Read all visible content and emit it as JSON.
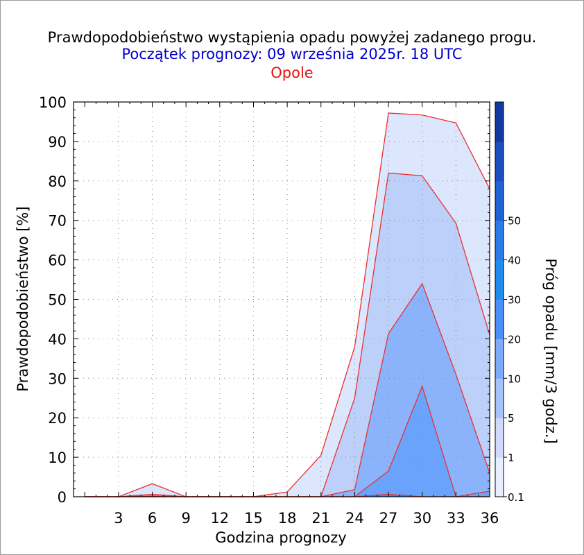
{
  "titles": {
    "line1": "Prawdopodobieństwo wystąpienia opadu powyżej zadanego progu.",
    "line2": "Początek prognozy: 09 września 2025r. 18 UTC",
    "line3": "Opole"
  },
  "colors": {
    "title1": "#000000",
    "title2": "#0000cc",
    "title3": "#e81010",
    "outline": "#e83030"
  },
  "chart_data": {
    "type": "area",
    "title": "Prawdopodobieństwo wystąpienia opadu powyżej zadanego progu.",
    "xlabel": "Godzina prognozy",
    "ylabel": "Prawdopodobieństwo [%]",
    "xlim": [
      -1,
      36
    ],
    "ylim": [
      0,
      100
    ],
    "x": [
      0,
      3,
      6,
      9,
      12,
      15,
      18,
      21,
      24,
      27,
      30,
      33,
      36
    ],
    "xticks": [
      "3",
      "6",
      "9",
      "12",
      "15",
      "18",
      "21",
      "24",
      "27",
      "30",
      "33",
      "36"
    ],
    "yticks": [
      "0",
      "10",
      "20",
      "30",
      "40",
      "50",
      "60",
      "70",
      "80",
      "90",
      "100"
    ],
    "grid": true,
    "series": [
      {
        "name": "0.1",
        "color": "#dce6fc",
        "values": [
          0,
          0,
          3.3,
          0,
          0,
          0,
          1.2,
          10.5,
          38,
          97.2,
          96.7,
          94.7,
          78
        ]
      },
      {
        "name": "1",
        "color": "#bcd0fa",
        "values": [
          0,
          0,
          0.6,
          0,
          0,
          0,
          0,
          0,
          25,
          82,
          81.3,
          69.3,
          41
        ]
      },
      {
        "name": "5",
        "color": "#8bb3fb",
        "values": [
          0,
          0,
          0.2,
          0,
          0,
          0,
          0,
          0,
          1.8,
          41.3,
          54,
          31,
          6
        ]
      },
      {
        "name": "10",
        "color": "#6aa3fc",
        "values": [
          0,
          0,
          0,
          0,
          0,
          0,
          0,
          0,
          0,
          6.5,
          28,
          0,
          1.4
        ]
      },
      {
        "name": "20",
        "color": "#3a8ff5",
        "values": [
          0,
          0,
          0,
          0,
          0,
          0,
          0,
          0,
          0,
          0.6,
          0,
          0,
          0
        ]
      }
    ],
    "colorbar": {
      "label": "Próg opadu [mm/3 godz.]",
      "ticks": [
        "0.1",
        "1",
        "5",
        "10",
        "20",
        "30",
        "40",
        "50"
      ],
      "colors": [
        "#e8eefd",
        "#ced9fb",
        "#a8c2fb",
        "#7eaafc",
        "#4a90f8",
        "#1f8cf0",
        "#2a7ce8",
        "#1f62d6",
        "#1a4fc2",
        "#123a9e"
      ]
    }
  }
}
